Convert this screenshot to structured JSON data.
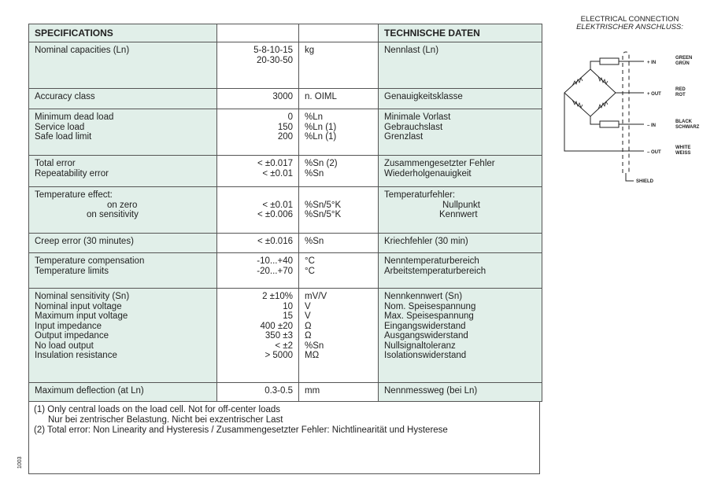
{
  "colors": {
    "shaded": "#e1efe9",
    "border": "#555555"
  },
  "table": {
    "header": [
      "SPECIFICATIONS",
      "",
      "",
      "TECHNISCHE DATEN"
    ],
    "rows": [
      {
        "en": [
          "Nominal capacities (Ln)"
        ],
        "val": [
          "5-8-10-15",
          "20-30-50"
        ],
        "unit": [
          "kg"
        ],
        "de": [
          "Nennlast (Ln)"
        ]
      },
      {
        "en": [
          "Accuracy class"
        ],
        "val": [
          "3000"
        ],
        "unit": [
          "n. OIML"
        ],
        "de": [
          "Genauigkeitsklasse"
        ]
      },
      {
        "en": [
          "Minimum dead load",
          "Service load",
          "Safe load limit"
        ],
        "val": [
          "0",
          "150",
          "200"
        ],
        "unit": [
          "%Ln",
          "%Ln (1)",
          "%Ln (1)"
        ],
        "de": [
          "Minimale Vorlast",
          "Gebrauchslast",
          "Grenzlast"
        ]
      },
      {
        "en": [
          "Total error",
          "Repeatability error"
        ],
        "val": [
          "< ±0.017",
          "< ±0.01"
        ],
        "unit": [
          "%Sn (2)",
          "%Sn"
        ],
        "de": [
          "Zusammengesetzter Fehler",
          "Wiederholgenauigkeit"
        ]
      },
      {
        "en": [
          "Temperature effect:",
          "on zero",
          "on sensitivity"
        ],
        "val": [
          "",
          "< ±0.01",
          "< ±0.006"
        ],
        "unit": [
          "",
          "%Sn/5°K",
          "%Sn/5°K"
        ],
        "de": [
          "Temperaturfehler:",
          "Nullpunkt",
          "Kennwert"
        ],
        "indent": true
      },
      {
        "en": [
          "Creep error (30 minutes)"
        ],
        "val": [
          "< ±0.016"
        ],
        "unit": [
          "%Sn"
        ],
        "de": [
          "Kriechfehler (30 min)"
        ]
      },
      {
        "en": [
          "Temperature compensation",
          "Temperature limits"
        ],
        "val": [
          "-10...+40",
          "-20...+70"
        ],
        "unit": [
          "°C",
          "°C"
        ],
        "de": [
          "Nenntemperaturbereich",
          "Arbeitstemperaturbereich"
        ]
      },
      {
        "en": [
          "Nominal sensitivity (Sn)",
          "Nominal input voltage",
          "Maximum input voltage",
          "Input impedance",
          "Output impedance",
          "No load output",
          "Insulation resistance"
        ],
        "val": [
          "2 ±10%",
          "10",
          "15",
          "400 ±20",
          "350 ±3",
          "< ±2",
          "> 5000"
        ],
        "unit": [
          "mV/V",
          "V",
          "V",
          "Ω",
          "Ω",
          "%Sn",
          "MΩ"
        ],
        "de": [
          "Nennkennwert (Sn)",
          "Nom. Speisespannung",
          "Max. Speisespannung",
          "Eingangswiderstand",
          "Ausgangswiderstand",
          "Nullsignaltoleranz",
          "Isolationswiderstand"
        ]
      },
      {
        "en": [
          "Maximum deflection (at Ln)"
        ],
        "val": [
          "0.3-0.5"
        ],
        "unit": [
          "mm"
        ],
        "de": [
          "Nennmessweg (bei Ln)"
        ]
      }
    ]
  },
  "notes": {
    "n1": "(1) Only central loads on the load cell. Not for off-center loads",
    "n1b": "Nur bei zentrischer Belastung. Nicht bei exzentrischer Last",
    "n2": "(2) Total error: Non Linearity and Hysteresis / Zusammengesetzter Fehler: Nichtlinearität und Hysterese"
  },
  "doc_code": "1003",
  "connection": {
    "title": "ELECTRICAL CONNECTION",
    "title_de": "ELEKTRISCHER ANSCHLUSS:",
    "wires": [
      {
        "label": "+ IN",
        "color": "GREEN",
        "color_de": "GRÜN"
      },
      {
        "label": "+ OUT",
        "color": "RED",
        "color_de": "ROT"
      },
      {
        "label": "– IN",
        "color": "BLACK",
        "color_de": "SCHWARZ"
      },
      {
        "label": "– OUT",
        "color": "WHITE",
        "color_de": "WEISS"
      }
    ],
    "shield": "SHIELD"
  }
}
